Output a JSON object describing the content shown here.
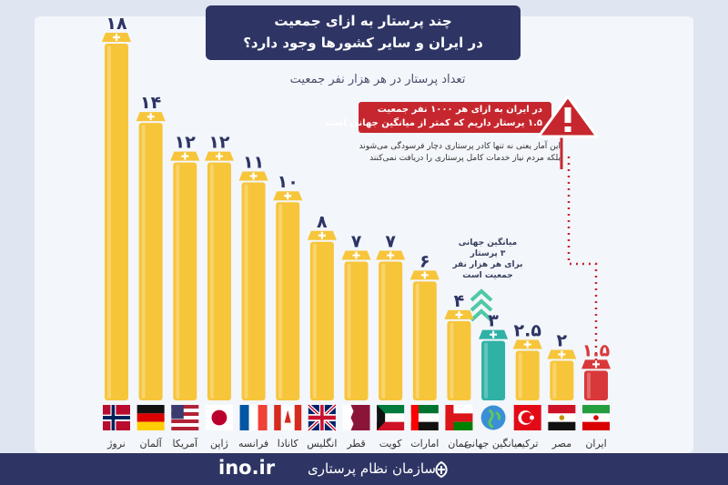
{
  "header": {
    "title_line1": "چند پرستار به ازای جمعیت",
    "title_line2": "در ایران و سایر کشورها وجود دارد؟",
    "subtitle": "تعداد پرستار در هر هزار نفر جمعیت"
  },
  "callout": {
    "line1": "در ایران به ازای هر ۱۰۰۰ نفر جمعیت",
    "line2": "۱.۵ پرستار داریم که کمتر از میانگین جهانی است",
    "note1": "این آمار یعنی نه تنها کادر پرستاری دچار فرسودگی می‌شوند",
    "note2": "بلکه مردم نیاز خدمات کامل پرستاری را دریافت نمی‌کنند"
  },
  "average_note": {
    "line1": "میانگین جهانی",
    "line2": "۳ پرستار",
    "line3": "برای هر هزار نفر",
    "line4": "جمعیت است"
  },
  "footer": {
    "site": "ino.ir",
    "org": "سازمان نظام پرستاری"
  },
  "colors": {
    "bar": "#f7c53a",
    "bar_iran": "#d9383a",
    "bar_average": "#2fb1a6",
    "number_text": "#2e3564",
    "alert": "#c6272e",
    "footer": "#2e3564"
  },
  "chart_data": {
    "type": "bar",
    "title": "چند پرستار به ازای جمعیت در ایران و سایر کشورها وجود دارد؟",
    "ylabel": "تعداد پرستار در هر هزار نفر جمعیت",
    "categories": [
      "نروژ",
      "آلمان",
      "آمریکا",
      "ژاپن",
      "فرانسه",
      "کانادا",
      "انگلیس",
      "قطر",
      "کویت",
      "امارات",
      "عمان",
      "میانگین جهانی",
      "ترکیه",
      "مصر",
      "ایران"
    ],
    "values": [
      18,
      14,
      12,
      12,
      11,
      10,
      8,
      7,
      7,
      6,
      4,
      3,
      2.5,
      2,
      1.5
    ],
    "value_labels": [
      "۱۸",
      "۱۴",
      "۱۲",
      "۱۲",
      "۱۱",
      "۱۰",
      "۸",
      "۷",
      "۷",
      "۶",
      "۴",
      "۳",
      "۲.۵",
      "۲",
      "۱.۵"
    ],
    "flags": [
      "flag-norway",
      "flag-germany",
      "flag-usa",
      "flag-japan",
      "flag-france",
      "flag-canada",
      "flag-uk",
      "flag-qatar",
      "flag-kuwait",
      "flag-uae",
      "flag-oman",
      "globe",
      "flag-turkey",
      "flag-egypt",
      "flag-iran"
    ],
    "ylim": [
      0,
      18
    ],
    "grid": false,
    "legend": "none"
  }
}
